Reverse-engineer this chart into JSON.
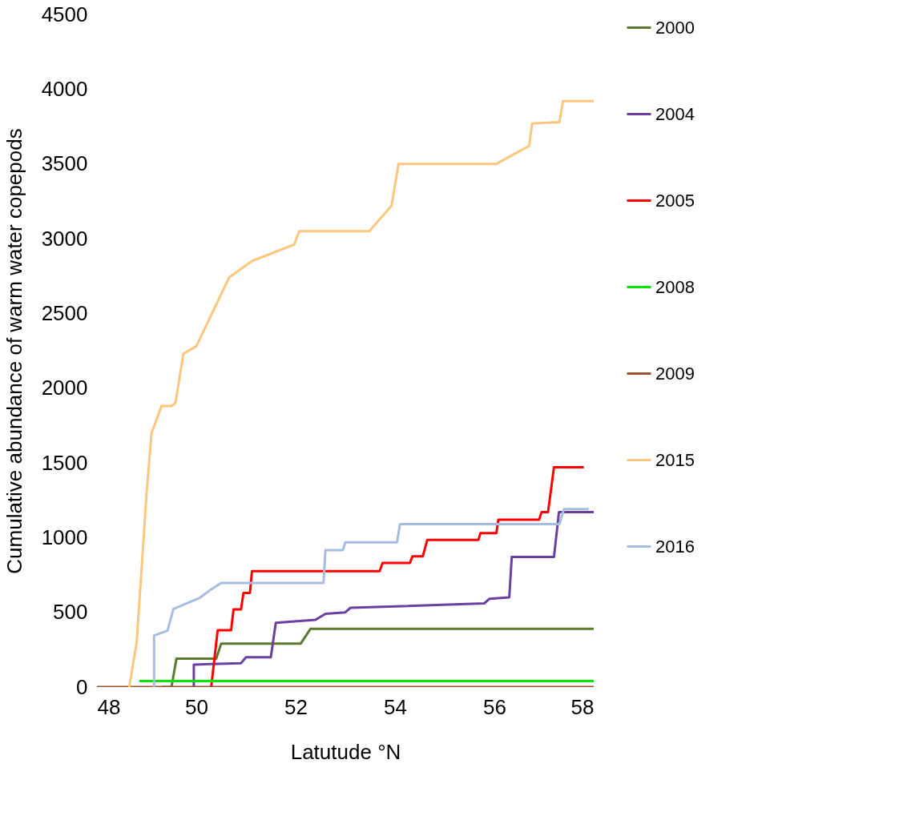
{
  "chart_data": {
    "type": "line",
    "xlabel": "Latutude °N",
    "ylabel": "Cumulative  abundance of warm water copepods",
    "xlim": [
      48,
      58
    ],
    "xticks": [
      48,
      50,
      52,
      54,
      56,
      58
    ],
    "ylim": [
      0,
      4500
    ],
    "yticks": [
      0,
      500,
      1000,
      1500,
      2000,
      2500,
      3000,
      3500,
      4000,
      4500
    ],
    "grid": false,
    "legend": "right",
    "marker": "none",
    "line_style": "solid",
    "series": [
      {
        "name": "2000",
        "color": "#5b7a2f",
        "x": [
          49.3,
          49.5,
          49.6,
          50.4,
          50.5,
          52.1,
          52.3,
          58
        ],
        "values": [
          0,
          0,
          190,
          190,
          290,
          290,
          390,
          390
        ]
      },
      {
        "name": "2004",
        "color": "#6b3fa0",
        "x": [
          49.95,
          49.95,
          50.9,
          51.0,
          51.5,
          51.6,
          52.4,
          52.6,
          53.0,
          53.1,
          55.8,
          55.9,
          56.3,
          56.35,
          57.2,
          57.3,
          58
        ],
        "values": [
          0,
          150,
          160,
          200,
          200,
          430,
          450,
          490,
          500,
          530,
          560,
          590,
          600,
          870,
          870,
          1170,
          1170
        ]
      },
      {
        "name": "2005",
        "color": "#ff0000",
        "x": [
          50.3,
          50.43,
          50.7,
          50.75,
          50.9,
          50.95,
          51.08,
          51.12,
          53.69,
          53.75,
          54.3,
          54.35,
          54.56,
          54.65,
          55.68,
          55.72,
          56.04,
          56.08,
          56.9,
          56.95,
          57.08,
          57.2,
          57.8
        ],
        "values": [
          0,
          380,
          380,
          520,
          520,
          630,
          630,
          775,
          775,
          830,
          830,
          875,
          875,
          985,
          985,
          1030,
          1030,
          1120,
          1120,
          1170,
          1170,
          1470,
          1470
        ]
      },
      {
        "name": "2008",
        "color": "#00e600",
        "x": [
          48.85,
          58
        ],
        "values": [
          40,
          40
        ]
      },
      {
        "name": "2009",
        "color": "#a0522d",
        "x": [
          48,
          58
        ],
        "values": [
          0,
          0
        ]
      },
      {
        "name": "2015",
        "color": "#fdc67f",
        "x": [
          48.65,
          48.8,
          48.9,
          49.0,
          49.1,
          49.3,
          49.5,
          49.58,
          49.74,
          50.0,
          50.66,
          51.12,
          51.97,
          52.07,
          53.48,
          53.93,
          54.07,
          56.04,
          56.7,
          56.76,
          57.31,
          57.38,
          58
        ],
        "values": [
          0,
          300,
          800,
          1300,
          1700,
          1880,
          1880,
          1900,
          2230,
          2280,
          2740,
          2850,
          2960,
          3050,
          3050,
          3220,
          3500,
          3500,
          3620,
          3770,
          3780,
          3920,
          3920
        ]
      },
      {
        "name": "2016",
        "color": "#a6bde0",
        "x": [
          49.15,
          49.15,
          49.42,
          49.54,
          50.07,
          50.3,
          50.5,
          52.56,
          52.6,
          52.95,
          53.0,
          54.04,
          54.1,
          57.31,
          57.4,
          57.9
        ],
        "values": [
          0,
          345,
          377,
          523,
          597,
          654,
          696,
          696,
          916,
          916,
          968,
          968,
          1090,
          1090,
          1190,
          1190
        ]
      }
    ]
  }
}
